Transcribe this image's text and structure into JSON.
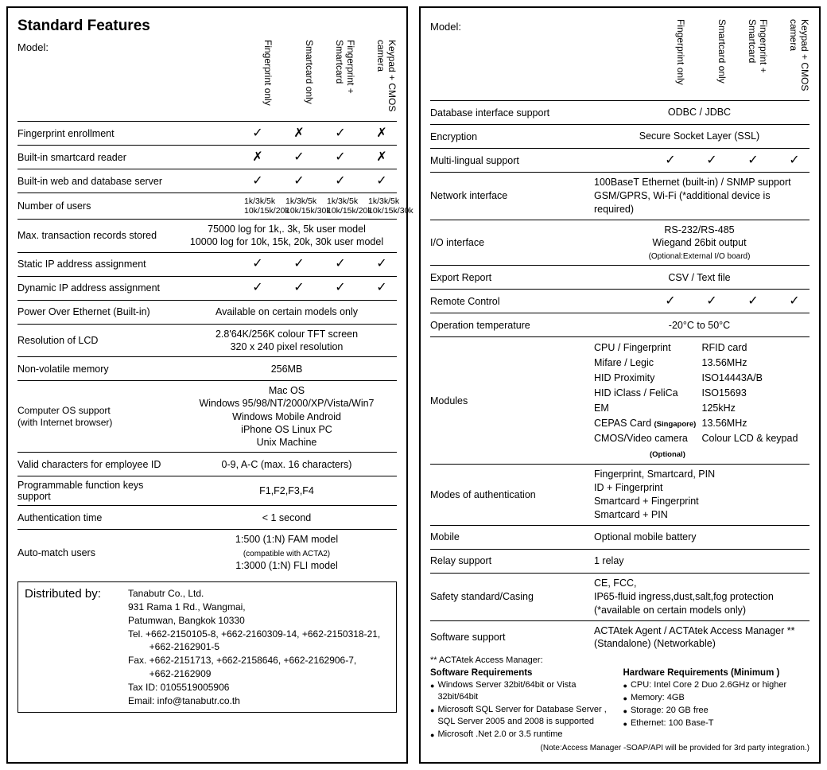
{
  "left": {
    "title": "Standard Features",
    "modelLabel": "Model:",
    "cols": [
      "Fingerprint only",
      "Smartcard only",
      "Fingerprint + Smartcard",
      "Keypad + CMOS camera"
    ],
    "rows": [
      {
        "label": "Fingerprint enrollment",
        "type": "marks",
        "v": [
          "✓",
          "✗",
          "✓",
          "✗"
        ]
      },
      {
        "label": "Built-in smartcard reader",
        "type": "marks",
        "v": [
          "✗",
          "✓",
          "✓",
          "✗"
        ]
      },
      {
        "label": "Built-in web and database server",
        "type": "marks",
        "v": [
          "✓",
          "✓",
          "✓",
          "✓"
        ]
      },
      {
        "label": "Number of users",
        "type": "txtcols",
        "v": [
          "1k/3k/5k 10k/15k/20k",
          "1k/3k/5k 10k/15k/30k",
          "1k/3k/5k 10k/15k/20k",
          "1k/3k/5k 10k/15k/30k"
        ]
      },
      {
        "label": "Max. transaction records stored",
        "type": "span",
        "v": "75000 log for 1k,. 3k, 5k user model\n10000 log for 10k, 15k, 20k, 30k user model"
      },
      {
        "label": "Static IP address assignment",
        "type": "marks",
        "v": [
          "✓",
          "✓",
          "✓",
          "✓"
        ]
      },
      {
        "label": "Dynamic IP address assignment",
        "type": "marks",
        "v": [
          "✓",
          "✓",
          "✓",
          "✓"
        ]
      },
      {
        "label": "Power Over Ethernet (Built-in)",
        "type": "span",
        "v": "Available on certain models only"
      },
      {
        "label": "Resolution of LCD",
        "type": "span",
        "v": "2.8'64K/256K colour TFT screen\n320 x 240 pixel resolution"
      },
      {
        "label": "Non-volatile memory",
        "type": "span",
        "v": "256MB"
      },
      {
        "label": "Computer OS support\n(with Internet browser)",
        "type": "spanlines",
        "v": [
          "Mac OS",
          "Windows 95/98/NT/2000/XP/Vista/Win7",
          "Windows Mobile    Android",
          "iPhone OS           Linux PC",
          "Unix Machine"
        ]
      },
      {
        "label": "Valid characters for employee ID",
        "type": "span",
        "v": "0-9, A-C (max. 16 characters)"
      },
      {
        "label": "Programmable function keys support",
        "type": "span",
        "v": "F1,F2,F3,F4"
      },
      {
        "label": "Authentication time",
        "type": "span",
        "v": "< 1 second"
      },
      {
        "label": "Auto-match users",
        "type": "spanlines",
        "v": [
          "1:500 (1:N) FAM model",
          "(compatible with ACTA2)",
          "1:3000 (1:N) FLI model"
        ],
        "subIdx": 1
      }
    ],
    "dist": {
      "title": "Distributed by:",
      "lines": [
        "Tanabutr Co., Ltd.",
        "931 Rama 1 Rd., Wangmai,",
        "Patumwan, Bangkok 10330",
        "Tel. +662-2150105-8, +662-2160309-14, +662-2150318-21,",
        "        +662-2162901-5",
        "Fax. +662-2151713, +662-2158646, +662-2162906-7,",
        "        +662-2162909",
        "Tax ID: 0105519005906",
        "Email: info@tanabutr.co.th"
      ]
    }
  },
  "right": {
    "modelLabel": "Model:",
    "cols": [
      "Fingerprint only",
      "Smartcard only",
      "Fingerprint + Smartcard",
      "Keypad + CMOS camera"
    ],
    "rows": [
      {
        "label": "Database interface support",
        "type": "span",
        "v": "ODBC / JDBC"
      },
      {
        "label": "Encryption",
        "type": "span",
        "v": "Secure Socket Layer (SSL)"
      },
      {
        "label": "Multi-lingual support",
        "type": "marks",
        "v": [
          "✓",
          "✓",
          "✓",
          "✓"
        ]
      },
      {
        "label": "Network interface",
        "type": "rightlines",
        "v": [
          "100BaseT Ethernet (built-in) /  SNMP support",
          "GSM/GPRS, Wi-Fi (*additional device is required)"
        ]
      },
      {
        "label": "I/O interface",
        "type": "spanlines",
        "v": [
          "RS-232/RS-485",
          "Wiegand 26bit output",
          "(Optional:External I/O board)"
        ],
        "subIdx": 2
      },
      {
        "label": "Export Report",
        "type": "span",
        "v": "CSV / Text file"
      },
      {
        "label": "Remote Control",
        "type": "marks",
        "v": [
          "✓",
          "✓",
          "✓",
          "✓"
        ]
      },
      {
        "label": "Operation temperature",
        "type": "span",
        "v": "-20°C to 50°C"
      },
      {
        "label": "Modules",
        "type": "modules",
        "left": [
          "CPU / Fingerprint",
          "Mifare / Legic",
          "HID Proximity",
          "HID iClass / FeliCa",
          "EM",
          "CEPAS Card (Singapore)",
          "CMOS/Video camera",
          "(Optional)"
        ],
        "right": [
          "RFID card",
          "13.56MHz",
          "ISO14443A/B",
          "ISO15693",
          "125kHz",
          "13.56MHz",
          "Colour LCD & keypad"
        ]
      },
      {
        "label": "Modes of authentication",
        "type": "rightlines",
        "v": [
          "Fingerprint, Smartcard, PIN",
          "ID + Fingerprint",
          "Smartcard + Fingerprint",
          "Smartcard + PIN"
        ]
      },
      {
        "label": "Mobile",
        "type": "right",
        "v": "Optional mobile battery"
      },
      {
        "label": "Relay support",
        "type": "right",
        "v": "1 relay"
      },
      {
        "label": "Safety standard/Casing",
        "type": "rightlines",
        "v": [
          "CE, FCC,",
          "IP65-fluid ingress,dust,salt,fog protection",
          "(*available on certain models only)"
        ]
      },
      {
        "label": "Software support",
        "type": "rightlines",
        "v": [
          "ACTAtek Agent / ACTAtek Access Manager **",
          "(Standalone)                          (Networkable)"
        ]
      }
    ],
    "starNote": "** ACTAtek Access Manager:",
    "swTitle": "Software Requirements",
    "hwTitle": "Hardware Requirements (Minimum )",
    "swList": [
      "Windows Server 32bit/64bit or Vista 32bit/64bit",
      "Microsoft SQL Server for Database Server , SQL Server 2005 and 2008 is supported",
      "Microsoft .Net 2.0 or 3.5 runtime"
    ],
    "hwList": [
      "CPU: Intel Core 2 Duo 2.6GHz or higher",
      "Memory: 4GB",
      "Storage: 20 GB free",
      "Ethernet: 100 Base-T"
    ],
    "footNote": "(Note:Access Manager -SOAP/API will be provided for 3rd party integration.)"
  }
}
